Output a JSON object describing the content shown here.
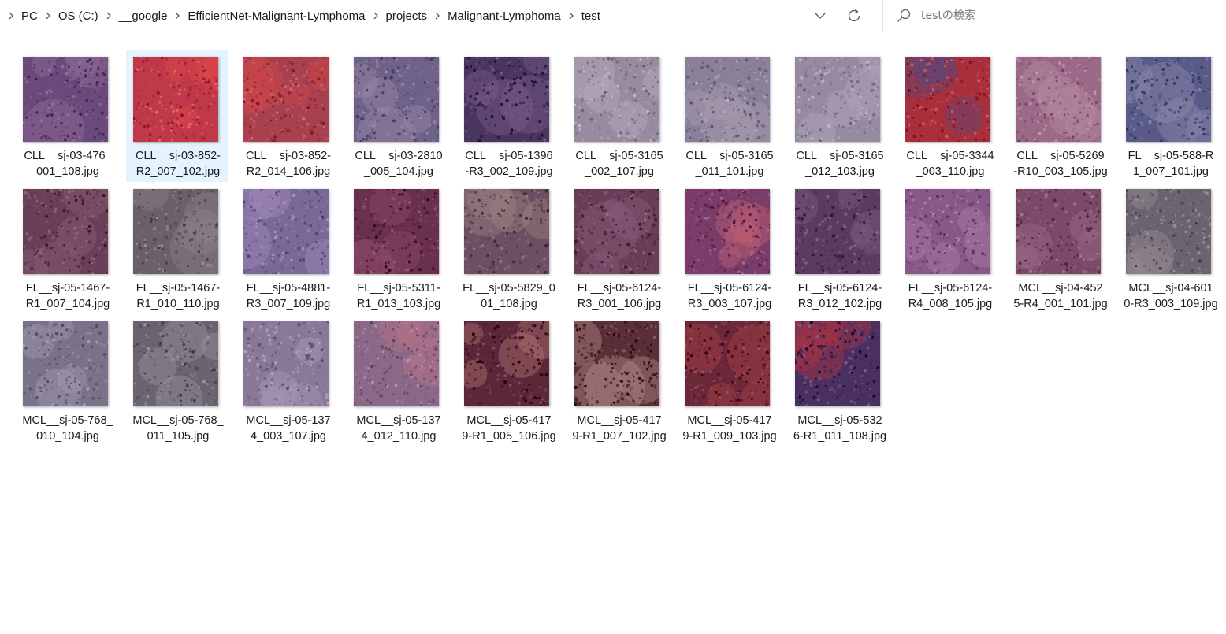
{
  "breadcrumb": {
    "items": [
      "PC",
      "OS (C:)",
      "__google",
      "EfficientNet-Malignant-Lymphoma",
      "projects",
      "Malignant-Lymphoma",
      "test"
    ]
  },
  "search": {
    "placeholder": "testの検索"
  },
  "icons": {
    "expand": "chevron-down-icon",
    "refresh": "refresh-icon",
    "search": "search-icon",
    "separator": "chevron-right-icon"
  },
  "colors": {
    "selection": "#e5f3ff",
    "border": "#e3e3e3"
  },
  "files": [
    {
      "line1": "CLL__sj-03-476_",
      "line2": "001_108.jpg",
      "tone": "#6a4a7a",
      "accent": "#8d6a9a",
      "selected": false
    },
    {
      "line1": "CLL__sj-03-852-",
      "line2": "R2_007_102.jpg",
      "tone": "#c0394a",
      "accent": "#e04a4a",
      "selected": true
    },
    {
      "line1": "CLL__sj-03-852-",
      "line2": "R2_014_106.jpg",
      "tone": "#a8404f",
      "accent": "#d04848",
      "selected": false
    },
    {
      "line1": "CLL__sj-03-2810",
      "line2": "_005_104.jpg",
      "tone": "#6f6288",
      "accent": "#9a8aa8",
      "selected": false
    },
    {
      "line1": "CLL__sj-05-1396",
      "line2": "-R3_002_109.jpg",
      "tone": "#4a3560",
      "accent": "#7a5a8a",
      "selected": false
    },
    {
      "line1": "CLL__sj-05-3165",
      "line2": "_002_107.jpg",
      "tone": "#9a8aa0",
      "accent": "#b8a8bc",
      "selected": false
    },
    {
      "line1": "CLL__sj-05-3165",
      "line2": "_011_101.jpg",
      "tone": "#8a809a",
      "accent": "#a89cb0",
      "selected": false
    },
    {
      "line1": "CLL__sj-05-3165",
      "line2": "_012_103.jpg",
      "tone": "#958aa0",
      "accent": "#b0a4b8",
      "selected": false
    },
    {
      "line1": "CLL__sj-05-3344",
      "line2": "_003_110.jpg",
      "tone": "#a8303c",
      "accent": "#5a4a7a",
      "selected": false
    },
    {
      "line1": "CLL__sj-05-5269",
      "line2": "-R10_003_105.jpg",
      "tone": "#9a6a88",
      "accent": "#b88aa0",
      "selected": false
    },
    {
      "line1": "FL__sj-05-588-R",
      "line2": "1_007_101.jpg",
      "tone": "#5a5a88",
      "accent": "#8a8aaa",
      "selected": false
    },
    {
      "line1": "FL__sj-05-1467-",
      "line2": "R1_007_104.jpg",
      "tone": "#6a4058",
      "accent": "#8a5a70",
      "selected": false
    },
    {
      "line1": "FL__sj-05-1467-",
      "line2": "R1_010_110.jpg",
      "tone": "#6a6068",
      "accent": "#8a8088",
      "selected": false
    },
    {
      "line1": "FL__sj-05-4881-",
      "line2": "R3_007_109.jpg",
      "tone": "#7a6898",
      "accent": "#a08ab8",
      "selected": false
    },
    {
      "line1": "FL__sj-05-5311-",
      "line2": "R1_013_103.jpg",
      "tone": "#6a3050",
      "accent": "#8a4a68",
      "selected": false
    },
    {
      "line1": "FL__sj-05-5829_0",
      "line2": "01_108.jpg",
      "tone": "#6a5060",
      "accent": "#9a8080",
      "selected": false
    },
    {
      "line1": "FL__sj-05-6124-",
      "line2": "R3_001_106.jpg",
      "tone": "#6a3c58",
      "accent": "#8a5a78",
      "selected": false
    },
    {
      "line1": "FL__sj-05-6124-",
      "line2": "R3_003_107.jpg",
      "tone": "#7a3c68",
      "accent": "#c06070",
      "selected": false
    },
    {
      "line1": "FL__sj-05-6124-",
      "line2": "R3_012_102.jpg",
      "tone": "#5a3c60",
      "accent": "#7a5a80",
      "selected": false
    },
    {
      "line1": "FL__sj-05-6124-",
      "line2": "R4_008_105.jpg",
      "tone": "#8a5888",
      "accent": "#a87aa8",
      "selected": false
    },
    {
      "line1": "MCL__sj-04-452",
      "line2": "5-R4_001_101.jpg",
      "tone": "#7a4a68",
      "accent": "#9a6a88",
      "selected": false
    },
    {
      "line1": "MCL__sj-04-601",
      "line2": "0-R3_003_109.jpg",
      "tone": "#6a6470",
      "accent": "#9a8a90",
      "selected": false
    },
    {
      "line1": "MCL__sj-05-768_",
      "line2": "010_104.jpg",
      "tone": "#7a7288",
      "accent": "#a098b0",
      "selected": false
    },
    {
      "line1": "MCL__sj-05-768_",
      "line2": "011_105.jpg",
      "tone": "#6a6470",
      "accent": "#9a9098",
      "selected": false
    },
    {
      "line1": "MCL__sj-05-137",
      "line2": "4_003_107.jpg",
      "tone": "#8a7898",
      "accent": "#a898b4",
      "selected": false
    },
    {
      "line1": "MCL__sj-05-137",
      "line2": "4_012_110.jpg",
      "tone": "#8a6888",
      "accent": "#b87088",
      "selected": false
    },
    {
      "line1": "MCL__sj-05-417",
      "line2": "9-R1_005_106.jpg",
      "tone": "#5a2838",
      "accent": "#b07070",
      "selected": false
    },
    {
      "line1": "MCL__sj-05-417",
      "line2": "9-R1_007_102.jpg",
      "tone": "#5a3038",
      "accent": "#b08888",
      "selected": false
    },
    {
      "line1": "MCL__sj-05-417",
      "line2": "9-R1_009_103.jpg",
      "tone": "#6a2838",
      "accent": "#a84048",
      "selected": false
    },
    {
      "line1": "MCL__sj-05-532",
      "line2": "6-R1_011_108.jpg",
      "tone": "#4a3060",
      "accent": "#b03040",
      "selected": false
    }
  ]
}
